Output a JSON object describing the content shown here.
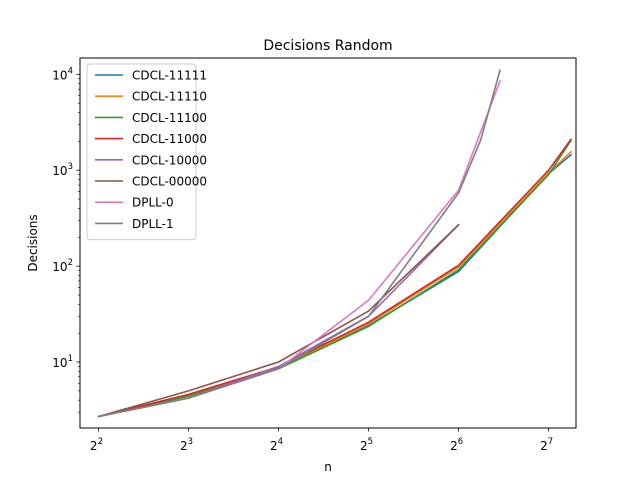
{
  "chart_data": {
    "type": "line",
    "title": "Decisions Random",
    "xlabel": "n",
    "ylabel": "Decisions",
    "xscale": "log2",
    "yscale": "log10",
    "xlim": [
      3.47,
      158
    ],
    "ylim": [
      2.05,
      14800
    ],
    "x_ticks": [
      {
        "base": "2",
        "exp": "2",
        "value": 4
      },
      {
        "base": "2",
        "exp": "3",
        "value": 8
      },
      {
        "base": "2",
        "exp": "4",
        "value": 16
      },
      {
        "base": "2",
        "exp": "5",
        "value": 32
      },
      {
        "base": "2",
        "exp": "6",
        "value": 64
      },
      {
        "base": "2",
        "exp": "7",
        "value": 128
      }
    ],
    "y_ticks": [
      {
        "base": "10",
        "exp": "1",
        "value": 10
      },
      {
        "base": "10",
        "exp": "2",
        "value": 100
      },
      {
        "base": "10",
        "exp": "3",
        "value": 1000
      },
      {
        "base": "10",
        "exp": "4",
        "value": 10000
      }
    ],
    "grid": false,
    "legend_position": "top-left",
    "series": [
      {
        "name": "CDCL-11111",
        "color": "#1f77b4",
        "x": [
          4,
          8,
          16,
          32,
          64,
          128,
          152
        ],
        "y": [
          2.7,
          4.5,
          8.6,
          24,
          88,
          920,
          1450
        ]
      },
      {
        "name": "CDCL-11110",
        "color": "#ff7f0e",
        "x": [
          4,
          8,
          16,
          32,
          64,
          128,
          152
        ],
        "y": [
          2.7,
          4.5,
          8.7,
          25,
          98,
          940,
          1560
        ]
      },
      {
        "name": "CDCL-11100",
        "color": "#2ca02c",
        "x": [
          4,
          8,
          16,
          32,
          64,
          128,
          152
        ],
        "y": [
          2.7,
          4.4,
          8.5,
          23.5,
          92,
          900,
          2050
        ]
      },
      {
        "name": "CDCL-11000",
        "color": "#d62728",
        "x": [
          4,
          8,
          16,
          32,
          64,
          128,
          152
        ],
        "y": [
          2.7,
          4.6,
          8.9,
          26,
          102,
          1000,
          2100
        ]
      },
      {
        "name": "CDCL-10000",
        "color": "#9467bd",
        "x": [
          4,
          8,
          16,
          32,
          64
        ],
        "y": [
          2.7,
          4.2,
          9.0,
          30,
          270
        ]
      },
      {
        "name": "CDCL-00000",
        "color": "#8c564b",
        "x": [
          4,
          8,
          16,
          32,
          64
        ],
        "y": [
          2.7,
          5.0,
          10.0,
          34,
          270
        ]
      },
      {
        "name": "DPLL-0",
        "color": "#e377c2",
        "x": [
          4,
          8,
          16,
          32,
          64,
          88
        ],
        "y": [
          2.7,
          4.2,
          8.5,
          44,
          620,
          8500
        ]
      },
      {
        "name": "DPLL-1",
        "color": "#7f7f7f",
        "x": [
          4,
          8,
          16,
          32,
          64,
          76,
          88
        ],
        "y": [
          2.7,
          4.2,
          8.5,
          30,
          580,
          2100,
          11000
        ]
      }
    ]
  }
}
